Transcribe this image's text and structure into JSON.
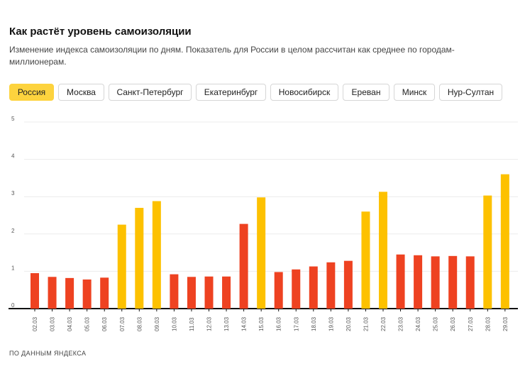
{
  "header": {
    "title": "Как растёт уровень самоизоляции",
    "subtitle": "Изменение индекса самоизоляции по дням. Показатель для России в целом рассчитан как среднее по городам-миллионерам."
  },
  "tabs": [
    {
      "label": "Россия",
      "active": true
    },
    {
      "label": "Москва",
      "active": false
    },
    {
      "label": "Санкт-Петербург",
      "active": false
    },
    {
      "label": "Екатеринбург",
      "active": false
    },
    {
      "label": "Новосибирск",
      "active": false
    },
    {
      "label": "Ереван",
      "active": false
    },
    {
      "label": "Минск",
      "active": false
    },
    {
      "label": "Нур-Султан",
      "active": false
    }
  ],
  "colors": {
    "weekday": "#ee4221",
    "weekend": "#fdc100",
    "active_tab": "#fdd33e",
    "grid": "#ececec",
    "axis": "#111111"
  },
  "chart_data": {
    "type": "bar",
    "title": "Как растёт уровень самоизоляции",
    "xlabel": "",
    "ylabel": "",
    "ylim": [
      0,
      5
    ],
    "yticks": [
      0,
      1,
      2,
      3,
      4,
      5
    ],
    "categories": [
      "02.03",
      "03.03",
      "04.03",
      "05.03",
      "06.03",
      "07.03",
      "08.03",
      "09.03",
      "10.03",
      "11.03",
      "12.03",
      "13.03",
      "14.03",
      "15.03",
      "16.03",
      "17.03",
      "18.03",
      "19.03",
      "20.03",
      "21.03",
      "22.03",
      "23.03",
      "24.03",
      "25.03",
      "26.03",
      "27.03",
      "28.03",
      "29.03"
    ],
    "values": [
      0.95,
      0.85,
      0.82,
      0.78,
      0.83,
      2.25,
      2.7,
      2.88,
      0.92,
      0.85,
      0.86,
      0.86,
      2.27,
      2.98,
      0.98,
      1.05,
      1.13,
      1.24,
      1.28,
      2.6,
      3.13,
      1.45,
      1.43,
      1.4,
      1.41,
      1.4,
      3.03,
      3.6
    ],
    "weekend": [
      false,
      false,
      false,
      false,
      false,
      true,
      true,
      true,
      false,
      false,
      false,
      false,
      false,
      true,
      false,
      false,
      false,
      false,
      false,
      true,
      true,
      false,
      false,
      false,
      false,
      false,
      true,
      true
    ]
  },
  "footer": {
    "source": "По данным Яндекса"
  }
}
